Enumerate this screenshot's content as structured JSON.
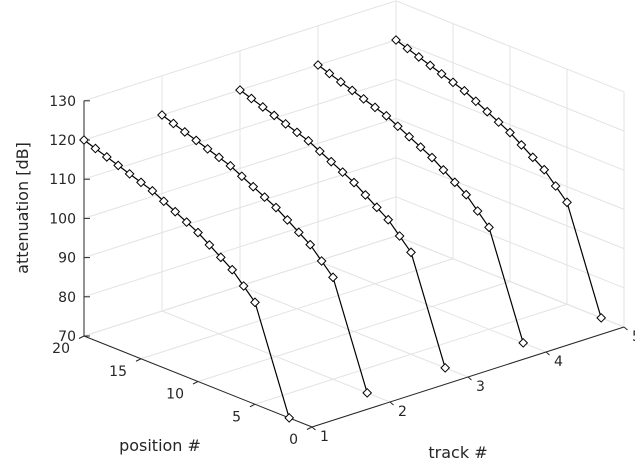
{
  "chart_data": {
    "type": "line",
    "title": "",
    "xlabel": "track #",
    "ylabel": "position #",
    "zlabel": "attenuation [dB]",
    "xlim": [
      1,
      5
    ],
    "ylim": [
      0,
      20
    ],
    "zlim": [
      70,
      130
    ],
    "x_ticks": [
      1,
      2,
      3,
      4,
      5
    ],
    "y_ticks": [
      0,
      5,
      10,
      15,
      20
    ],
    "z_ticks": [
      70,
      80,
      90,
      100,
      110,
      120,
      130
    ],
    "grid": true,
    "marker": "diamond",
    "color": "#000000",
    "position": [
      2,
      5,
      6,
      7,
      8,
      9,
      10,
      11,
      12,
      13,
      14,
      15,
      16,
      17,
      18,
      19,
      20
    ],
    "series": [
      {
        "track": 1,
        "values": [
          70,
          96,
          99,
          102,
          104,
          106,
          108,
          109.5,
          111,
          112.5,
          114,
          115,
          116,
          117,
          118,
          119,
          120
        ]
      },
      {
        "track": 2,
        "values": [
          70,
          96,
          99,
          102,
          104,
          106,
          108,
          109.5,
          111,
          112.5,
          114,
          115,
          116,
          117,
          118,
          119,
          120
        ]
      },
      {
        "track": 3,
        "values": [
          70,
          96,
          99,
          102,
          104,
          106,
          108,
          109.5,
          111,
          112.5,
          114,
          115,
          116,
          117,
          118,
          119,
          120
        ]
      },
      {
        "track": 4,
        "values": [
          70,
          96,
          99,
          102,
          104,
          106,
          108,
          109.5,
          111,
          112.5,
          114,
          115,
          116,
          117,
          118,
          119,
          120
        ]
      },
      {
        "track": 5,
        "values": [
          70,
          96,
          99,
          102,
          104,
          106,
          108,
          109.5,
          111,
          112.5,
          114,
          115,
          116,
          117,
          118,
          119,
          120
        ]
      }
    ]
  }
}
